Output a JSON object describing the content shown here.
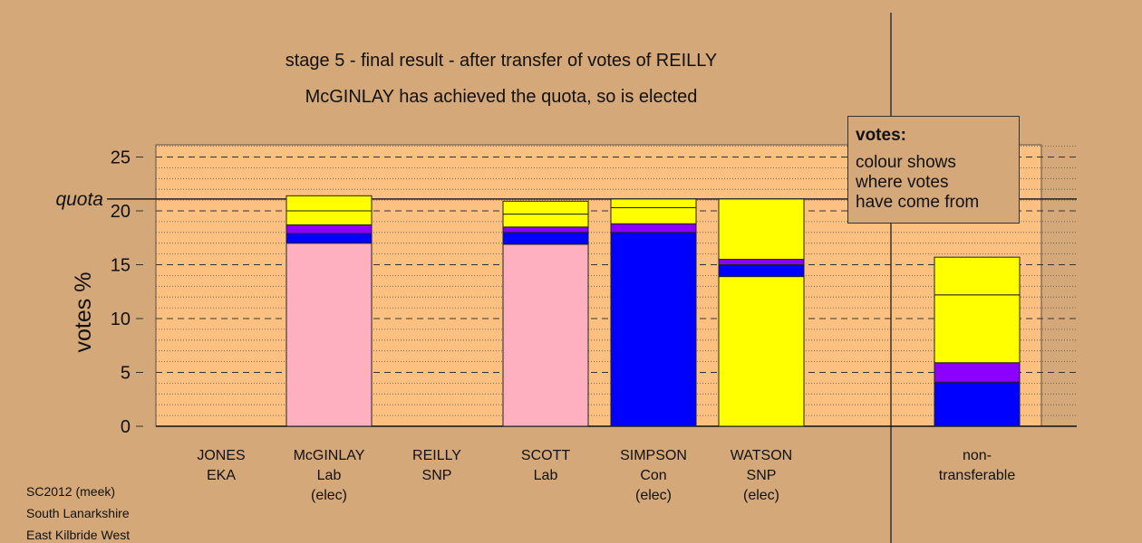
{
  "title_line1": "stage 5 - final result - after transfer of votes of REILLY",
  "title_line2": "McGINLAY has achieved the quota, so is elected",
  "legend": {
    "title": "votes:",
    "lines": [
      "colour shows",
      "where votes",
      "have come from"
    ]
  },
  "footer": [
    "SC2012 (meek)",
    "South Lanarkshire",
    "East Kilbride West"
  ],
  "colors": {
    "background": "#d4a878",
    "plot_bg": "#fcc080",
    "Lab": "#ffb0c0",
    "Con": "#0000ff",
    "SNP": "#ffff00",
    "other": "#8c00ff"
  },
  "chart_data": {
    "type": "bar",
    "stacked": true,
    "ylabel": "votes %",
    "ylim": [
      0,
      26
    ],
    "yticks": [
      0,
      5,
      10,
      15,
      20,
      25
    ],
    "quota": 21.1,
    "quota_label": "quota",
    "categories": [
      {
        "lines": [
          "JONES",
          "EKA"
        ],
        "status": ""
      },
      {
        "lines": [
          "McGINLAY",
          "Lab"
        ],
        "status": "(elec)"
      },
      {
        "lines": [
          "REILLY",
          "SNP"
        ],
        "status": ""
      },
      {
        "lines": [
          "SCOTT",
          "Lab"
        ],
        "status": ""
      },
      {
        "lines": [
          "SIMPSON",
          "Con"
        ],
        "status": "(elec)"
      },
      {
        "lines": [
          "WATSON",
          "SNP"
        ],
        "status": "(elec)"
      },
      {
        "lines": [
          "non-",
          "transferable"
        ],
        "status": ""
      }
    ],
    "segments": [
      [],
      [
        {
          "from": "Lab",
          "value": 17.0
        },
        {
          "from": "Con",
          "value": 0.9
        },
        {
          "from": "other",
          "value": 0.8
        },
        {
          "from": "SNP",
          "value": 1.3
        },
        {
          "from": "SNP",
          "value": 1.4
        }
      ],
      [],
      [
        {
          "from": "Lab",
          "value": 16.9
        },
        {
          "from": "Con",
          "value": 1.1
        },
        {
          "from": "other",
          "value": 0.5
        },
        {
          "from": "SNP",
          "value": 1.2
        },
        {
          "from": "SNP",
          "value": 1.2
        }
      ],
      [
        {
          "from": "Con",
          "value": 18.0
        },
        {
          "from": "other",
          "value": 0.8
        },
        {
          "from": "SNP",
          "value": 1.5
        },
        {
          "from": "SNP",
          "value": 0.8
        }
      ],
      [
        {
          "from": "SNP",
          "value": 13.9
        },
        {
          "from": "Con",
          "value": 1.1
        },
        {
          "from": "other",
          "value": 0.5
        },
        {
          "from": "SNP",
          "value": 5.6
        }
      ],
      [
        {
          "from": "Con",
          "value": 4.1
        },
        {
          "from": "other",
          "value": 1.8
        },
        {
          "from": "SNP",
          "value": 6.3
        },
        {
          "from": "SNP",
          "value": 3.5
        }
      ]
    ]
  }
}
